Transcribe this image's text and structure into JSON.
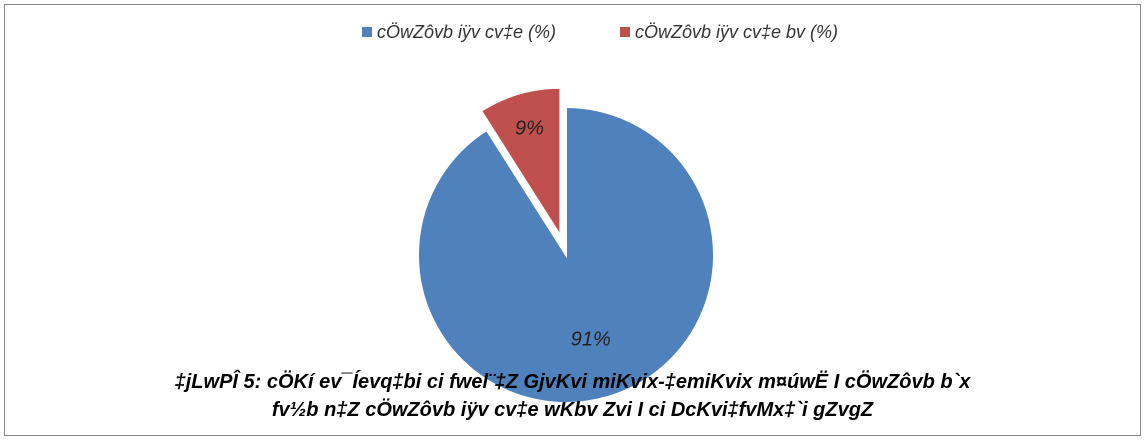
{
  "chart_data": {
    "type": "pie",
    "title": "‡jLwPÎ 5: cÖKí ev¯Íevq‡bi ci fwel¨‡Z GjvKvi miKvix-‡emiKvix m¤úwË I cÖwZôvb b`x fv½b n‡Z cÖwZôvb iÿv cv‡e wKbv Zvi I ci DcKvi‡fvMx‡`i gZvgZ",
    "categories": [
      "cÖwZôvb iÿv cv‡e (%)",
      "cÖwZôvb iÿv cv‡e bv (%)"
    ],
    "values": [
      91,
      9
    ],
    "value_labels": [
      "91%",
      "9%"
    ],
    "colors": [
      "#4f81bd",
      "#c0504d"
    ],
    "explode": [
      false,
      true
    ],
    "legend": "top"
  }
}
